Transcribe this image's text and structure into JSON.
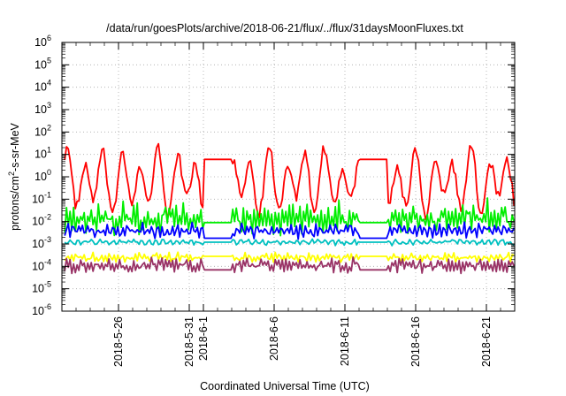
{
  "chart_data": {
    "type": "line",
    "title": "/data/run/goesPlots/archive/2018-06-21/flux/../flux/31daysMoonFluxes.txt",
    "xlabel": "Coordinated Universal Time (UTC)",
    "ylabel": "protons/cm²-s-sr-MeV",
    "y_scale": "log",
    "ylim": [
      1e-06,
      1000000.0
    ],
    "xlim": [
      "2018-05-22",
      "2018-06-23"
    ],
    "grid": true,
    "y_ticks": [
      {
        "value": 1e-06,
        "base": "10",
        "exp": "-6"
      },
      {
        "value": 1e-05,
        "base": "10",
        "exp": "-5"
      },
      {
        "value": 0.0001,
        "base": "10",
        "exp": "-4"
      },
      {
        "value": 0.001,
        "base": "10",
        "exp": "-3"
      },
      {
        "value": 0.01,
        "base": "10",
        "exp": "-2"
      },
      {
        "value": 0.1,
        "base": "10",
        "exp": "-1"
      },
      {
        "value": 1,
        "base": "10",
        "exp": "0"
      },
      {
        "value": 10,
        "base": "10",
        "exp": "1"
      },
      {
        "value": 100,
        "base": "10",
        "exp": "2"
      },
      {
        "value": 1000,
        "base": "10",
        "exp": "3"
      },
      {
        "value": 10000,
        "base": "10",
        "exp": "4"
      },
      {
        "value": 100000,
        "base": "10",
        "exp": "5"
      },
      {
        "value": 1000000,
        "base": "10",
        "exp": "6"
      }
    ],
    "x_ticks": [
      {
        "date": "2018-05-26",
        "label": "2018-5-26"
      },
      {
        "date": "2018-05-31",
        "label": "2018-5-31"
      },
      {
        "date": "2018-06-01",
        "label": "2018-6-1"
      },
      {
        "date": "2018-06-06",
        "label": "2018-6-6"
      },
      {
        "date": "2018-06-11",
        "label": "2018-6-11"
      },
      {
        "date": "2018-06-16",
        "label": "2018-6-16"
      },
      {
        "date": "2018-06-21",
        "label": "2018-6-21"
      }
    ],
    "gaps": [
      {
        "start": "2018-06-01",
        "end": "2018-06-03"
      },
      {
        "start": "2018-06-12",
        "end": "2018-06-14"
      }
    ],
    "series": [
      {
        "color": "#ff0000",
        "base": 1.0,
        "amp": 1.1,
        "noise": 0.25,
        "period": 1.3,
        "gap_value": 6.0,
        "values_desc": "red"
      },
      {
        "color": "#00ee00",
        "base": 0.012,
        "amp": 0.45,
        "noise": 0.35,
        "period": 0.25,
        "gap_value": 0.009
      },
      {
        "color": "#0000ff",
        "base": 0.004,
        "amp": 0.25,
        "noise": 0.18,
        "period": 0.35,
        "gap_value": 0.0018
      },
      {
        "color": "#00c0c0",
        "base": 0.0012,
        "amp": 0.1,
        "noise": 0.08,
        "period": 0.5,
        "gap_value": 0.0012
      },
      {
        "color": "#ffff00",
        "base": 0.00025,
        "amp": 0.15,
        "noise": 0.12,
        "period": 0.3,
        "gap_value": 0.00028
      },
      {
        "color": "#993366",
        "base": 0.00011,
        "amp": 0.2,
        "noise": 0.2,
        "period": 0.25,
        "gap_value": 7e-05
      }
    ]
  }
}
